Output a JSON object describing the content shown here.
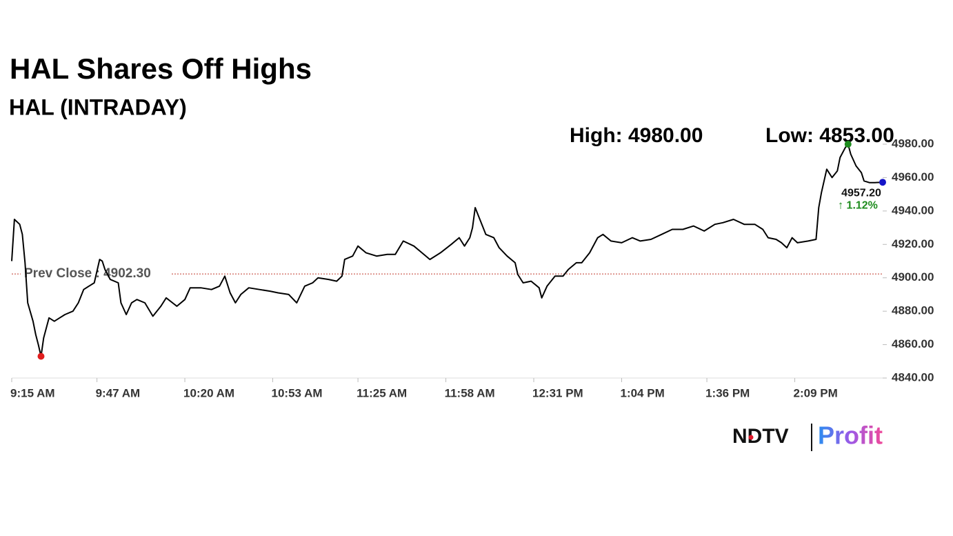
{
  "chart_data": {
    "type": "line",
    "title": "HAL Shares Off Highs",
    "subtitle": "HAL (INTRADAY)",
    "color": "#000000",
    "xlim": [
      0,
      327
    ],
    "ylim": [
      4840,
      4980
    ],
    "xticks": [
      {
        "value": 0,
        "label": "9:15 AM"
      },
      {
        "value": 32,
        "label": "9:47 AM"
      },
      {
        "value": 65,
        "label": "10:20 AM"
      },
      {
        "value": 98,
        "label": "10:53 AM"
      },
      {
        "value": 130,
        "label": "11:25 AM"
      },
      {
        "value": 163,
        "label": "11:58 AM"
      },
      {
        "value": 196,
        "label": "12:31 PM"
      },
      {
        "value": 229,
        "label": "1:04 PM"
      },
      {
        "value": 261,
        "label": "1:36 PM"
      },
      {
        "value": 294,
        "label": "2:09 PM"
      }
    ],
    "yticks": [
      {
        "value": 4840,
        "label": "4840.00"
      },
      {
        "value": 4860,
        "label": "4860.00"
      },
      {
        "value": 4880,
        "label": "4880.00"
      },
      {
        "value": 4900,
        "label": "4900.00"
      },
      {
        "value": 4920,
        "label": "4920.00"
      },
      {
        "value": 4940,
        "label": "4940.00"
      },
      {
        "value": 4960,
        "label": "4960.00"
      },
      {
        "value": 4980,
        "label": "4980.00"
      }
    ],
    "x": [
      0,
      1,
      3,
      4,
      5,
      6,
      8,
      9,
      10,
      11,
      12,
      14,
      16,
      18,
      20,
      23,
      25,
      27,
      29,
      31,
      33,
      34,
      35,
      37,
      40,
      41,
      43,
      45,
      47,
      50,
      53,
      56,
      58,
      62,
      65,
      67,
      71,
      75,
      78,
      80,
      82,
      84,
      86,
      89,
      93,
      97,
      100,
      104,
      107,
      110,
      113,
      115,
      119,
      122,
      124,
      125,
      128,
      130,
      133,
      137,
      141,
      144,
      147,
      151,
      154,
      157,
      161,
      165,
      168,
      170,
      172,
      173,
      174,
      176,
      178,
      181,
      183,
      186,
      189,
      190,
      192,
      195,
      198,
      199,
      201,
      204,
      207,
      209,
      212,
      214,
      217,
      220,
      222,
      225,
      229,
      233,
      236,
      240,
      244,
      248,
      252,
      256,
      260,
      264,
      267,
      271,
      275,
      279,
      282,
      284,
      287,
      289,
      291,
      293,
      295,
      299,
      302,
      303,
      304,
      306,
      308,
      310,
      311,
      313,
      314,
      315,
      317,
      319,
      320,
      322,
      324,
      327
    ],
    "values": [
      4910,
      4935,
      4932,
      4926,
      4909,
      4885,
      4874,
      4866,
      4860,
      4853,
      4864,
      4876,
      4874,
      4876,
      4878,
      4880,
      4885,
      4893,
      4895,
      4897,
      4911,
      4910,
      4905,
      4899,
      4897,
      4885,
      4878,
      4885,
      4887,
      4885,
      4877,
      4883,
      4888,
      4883,
      4887,
      4894,
      4894,
      4893,
      4895,
      4901,
      4891,
      4885,
      4890,
      4894,
      4893,
      4892,
      4891,
      4890,
      4885,
      4895,
      4897,
      4900,
      4899,
      4898,
      4901,
      4911,
      4913,
      4919,
      4915,
      4913,
      4914,
      4914,
      4922,
      4919,
      4915,
      4911,
      4915,
      4920,
      4924,
      4919,
      4924,
      4930,
      4942,
      4934,
      4926,
      4924,
      4918,
      4913,
      4909,
      4902,
      4897,
      4898,
      4894,
      4888,
      4895,
      4901,
      4901,
      4905,
      4909,
      4909,
      4915,
      4924,
      4926,
      4922,
      4921,
      4924,
      4922,
      4923,
      4926,
      4929,
      4929,
      4931,
      4928,
      4932,
      4933,
      4935,
      4932,
      4932,
      4929,
      4924,
      4923,
      4921,
      4918,
      4924,
      4921,
      4922,
      4923,
      4942,
      4951,
      4965,
      4960,
      4964,
      4972,
      4978,
      4980,
      4974,
      4967,
      4963,
      4958,
      4957,
      4957,
      4957.2
    ],
    "prev_close": {
      "label": "Prev Close : 4902.30",
      "value": 4902.3,
      "color": "#c0392b"
    },
    "high": {
      "label": "High: 4980.00",
      "x": 314,
      "value": 4980,
      "color": "#1e8c1e"
    },
    "low": {
      "label": "Low: 4853.00",
      "x": 11,
      "value": 4853,
      "color": "#e01e1e"
    },
    "last": {
      "label": "4957.20",
      "change": "↑ 1.12%",
      "x": 327,
      "value": 4957.2,
      "color": "#1515c8",
      "change_color": "#1e8c1e"
    },
    "brand": [
      "NDTV",
      "Profit"
    ]
  }
}
